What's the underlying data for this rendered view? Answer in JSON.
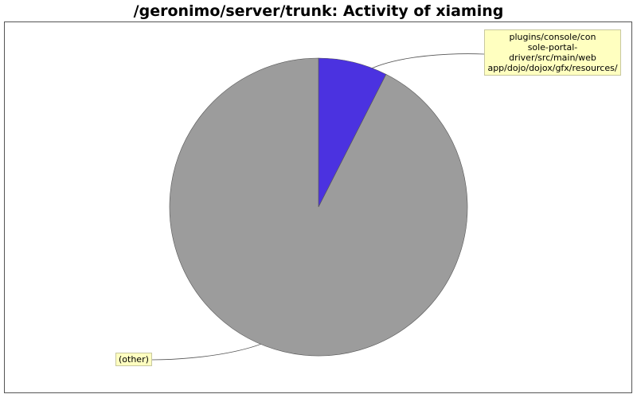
{
  "chart_data": {
    "type": "pie",
    "title": "/geronimo/server/trunk: Activity of xiaming",
    "slices": [
      {
        "label": "plugins/console/con\nsole-portal-\ndriver/src/main/web\napp/dojo/dojox/gfx/resources/",
        "value": 7.5,
        "color": "#4b32e0"
      },
      {
        "label": "(other)",
        "value": 92.5,
        "color": "#9c9c9c"
      }
    ],
    "start_angle": "12 o'clock",
    "direction": "clockwise",
    "legend": "none",
    "grid": false
  }
}
